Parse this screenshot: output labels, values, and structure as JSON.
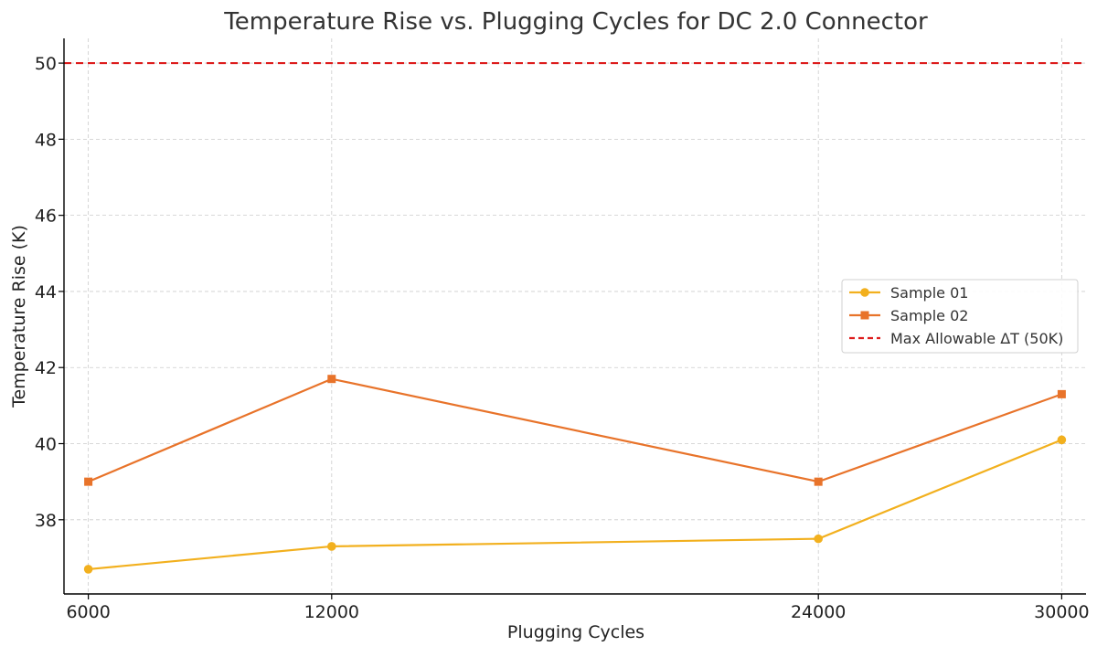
{
  "chart_data": {
    "type": "line",
    "title": "Temperature Rise vs. Plugging Cycles for DC 2.0 Connector",
    "xlabel": "Plugging Cycles",
    "ylabel": "Temperature Rise (K)",
    "x": [
      6000,
      12000,
      24000,
      30000
    ],
    "x_tick_labels": [
      "6000",
      "12000",
      "24000",
      "30000"
    ],
    "xlim": [
      5400,
      30600
    ],
    "ylim": [
      36.05,
      50.65
    ],
    "y_ticks": [
      38,
      40,
      42,
      44,
      46,
      48,
      50
    ],
    "y_tick_labels": [
      "38",
      "40",
      "42",
      "44",
      "46",
      "48",
      "50"
    ],
    "grid": true,
    "legend_position": "center-right",
    "series": [
      {
        "name": "Sample 01",
        "values": [
          36.7,
          37.3,
          37.5,
          40.1
        ],
        "color": "#f2b01e",
        "marker": "circle"
      },
      {
        "name": "Sample 02",
        "values": [
          39.0,
          41.7,
          39.0,
          41.3
        ],
        "color": "#e8732a",
        "marker": "square"
      }
    ],
    "reference_lines": [
      {
        "name": "Max Allowable ΔT (50K)",
        "y": 50,
        "color": "#dd1c1c",
        "style": "dashed"
      }
    ]
  }
}
